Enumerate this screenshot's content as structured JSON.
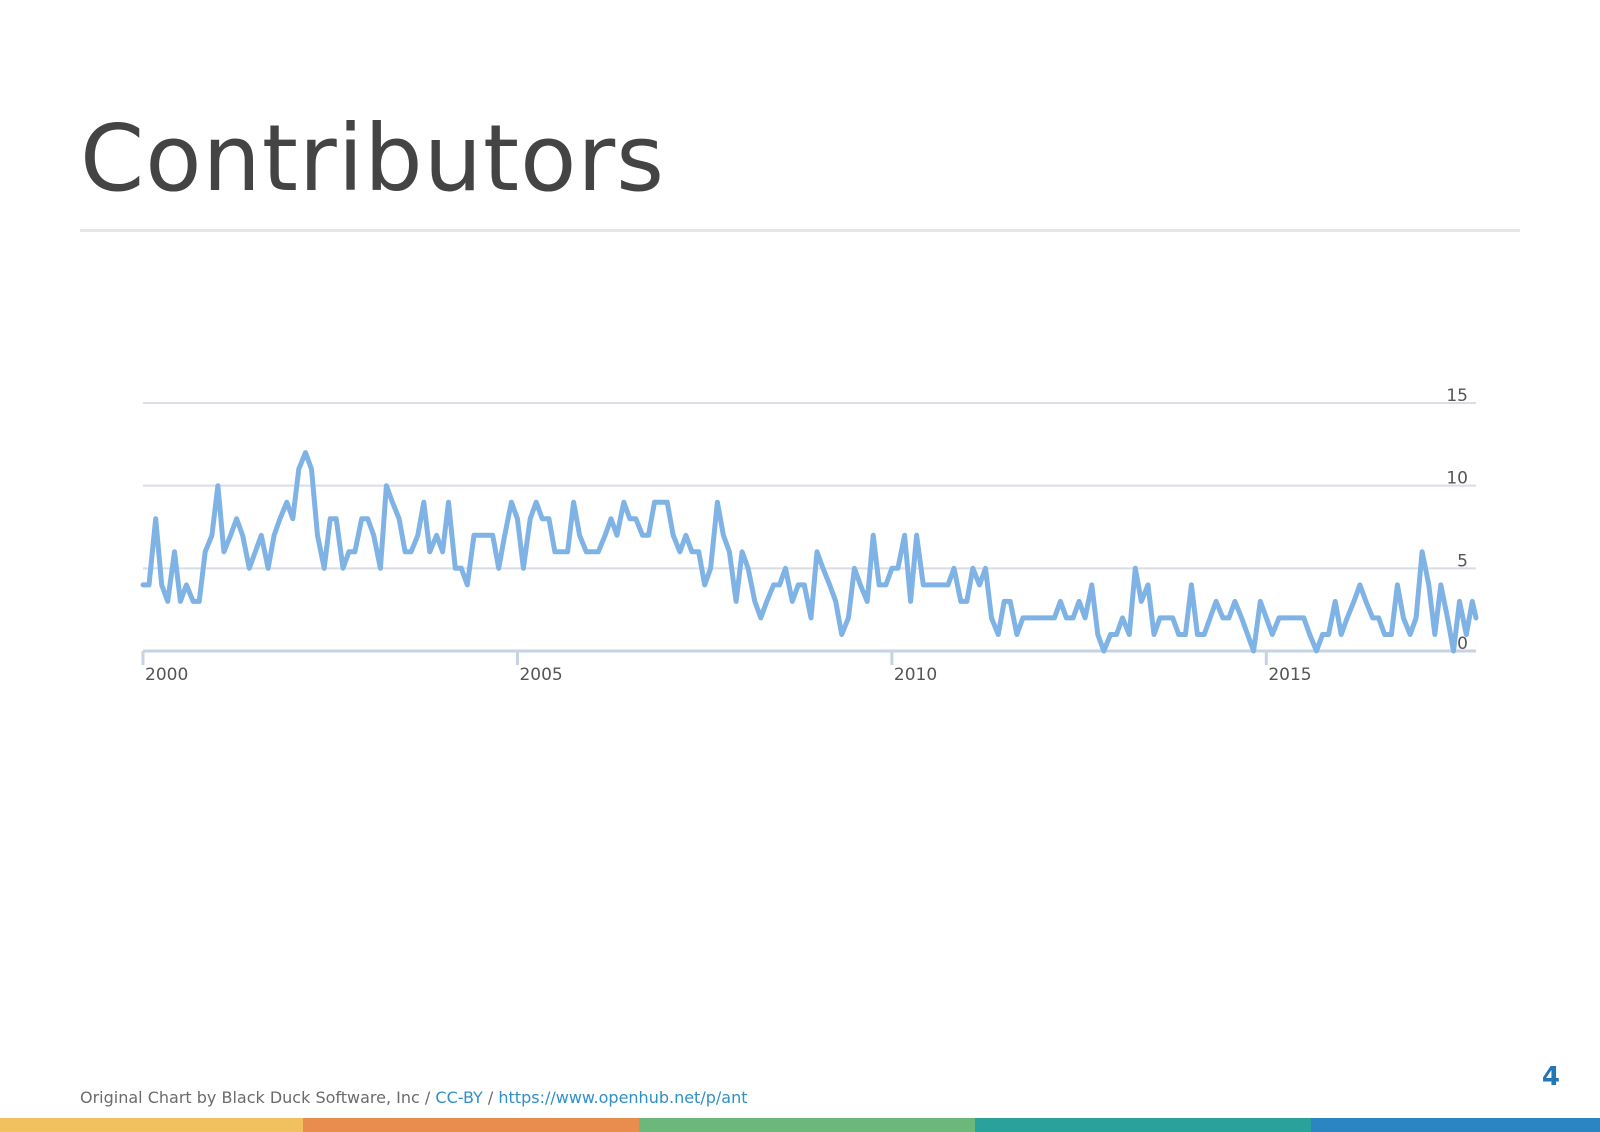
{
  "slide": {
    "title": "Contributors",
    "page_number": "4"
  },
  "footer": {
    "credit_text": "Original Chart by Black Duck Software, Inc",
    "separator": "/",
    "license_link": "CC-BY",
    "source_link": "https://www.openhub.net/p/ant"
  },
  "colors": {
    "line": "#7fb2e5",
    "gridline": "#d8dde6",
    "axis": "#c7d3e3",
    "title": "#444444",
    "accent_blue": "#2476b5",
    "stripe": [
      "#f2c15f",
      "#e98d4f",
      "#6bb87a",
      "#2aa19b",
      "#2a85c0"
    ]
  },
  "chart_data": {
    "type": "line",
    "title": "",
    "xlabel": "",
    "ylabel": "",
    "xlim": [
      2000.0,
      2017.8
    ],
    "ylim": [
      0,
      15
    ],
    "x_ticks": [
      2000,
      2005,
      2010,
      2015
    ],
    "x_tick_labels": [
      "2000",
      "2005",
      "2010",
      "2015"
    ],
    "y_ticks": [
      0,
      5,
      10,
      15
    ],
    "y_tick_labels": [
      "0",
      "5",
      "10",
      "15"
    ],
    "y_axis_side": "right",
    "grid": true,
    "legend": "none",
    "series": [
      {
        "x": [
          2000.0,
          2000.08,
          2000.17,
          2000.25,
          2000.33,
          2000.42,
          2000.5,
          2000.58,
          2000.67,
          2000.75,
          2000.83,
          2000.92,
          2001.0,
          2001.08,
          2001.17,
          2001.25,
          2001.33,
          2001.42,
          2001.5,
          2001.58,
          2001.67,
          2001.75,
          2001.83,
          2001.92,
          2002.0,
          2002.08,
          2002.17,
          2002.25,
          2002.33,
          2002.42,
          2002.5,
          2002.58,
          2002.67,
          2002.75,
          2002.83,
          2002.92,
          2003.0,
          2003.08,
          2003.17,
          2003.25,
          2003.33,
          2003.42,
          2003.5,
          2003.58,
          2003.67,
          2003.75,
          2003.83,
          2003.92,
          2004.0,
          2004.08,
          2004.17,
          2004.25,
          2004.33,
          2004.42,
          2004.5,
          2004.58,
          2004.67,
          2004.75,
          2004.83,
          2004.92,
          2005.0,
          2005.08,
          2005.17,
          2005.25,
          2005.33,
          2005.42,
          2005.5,
          2005.58,
          2005.67,
          2005.75,
          2005.83,
          2005.92,
          2006.0,
          2006.08,
          2006.17,
          2006.25,
          2006.33,
          2006.42,
          2006.5,
          2006.58,
          2006.67,
          2006.75,
          2006.83,
          2006.92,
          2007.0,
          2007.08,
          2007.17,
          2007.25,
          2007.33,
          2007.42,
          2007.5,
          2007.58,
          2007.67,
          2007.75,
          2007.83,
          2007.92,
          2008.0,
          2008.08,
          2008.17,
          2008.25,
          2008.33,
          2008.42,
          2008.5,
          2008.58,
          2008.67,
          2008.75,
          2008.83,
          2008.92,
          2009.0,
          2009.08,
          2009.17,
          2009.25,
          2009.33,
          2009.42,
          2009.5,
          2009.58,
          2009.67,
          2009.75,
          2009.83,
          2009.92,
          2010.0,
          2010.08,
          2010.17,
          2010.25,
          2010.33,
          2010.42,
          2010.5,
          2010.58,
          2010.67,
          2010.75,
          2010.83,
          2010.92,
          2011.0,
          2011.08,
          2011.17,
          2011.25,
          2011.33,
          2011.42,
          2011.5,
          2011.58,
          2011.67,
          2011.75,
          2011.83,
          2011.92,
          2012.0,
          2012.08,
          2012.17,
          2012.25,
          2012.33,
          2012.42,
          2012.5,
          2012.58,
          2012.67,
          2012.75,
          2012.83,
          2012.92,
          2013.0,
          2013.08,
          2013.17,
          2013.25,
          2013.33,
          2013.42,
          2013.5,
          2013.58,
          2013.67,
          2013.75,
          2013.83,
          2013.92,
          2014.0,
          2014.08,
          2014.17,
          2014.25,
          2014.33,
          2014.42,
          2014.5,
          2014.58,
          2014.67,
          2014.75,
          2014.83,
          2014.92,
          2015.0,
          2015.08,
          2015.17,
          2015.25,
          2015.33,
          2015.42,
          2015.5,
          2015.58,
          2015.67,
          2015.75,
          2015.83,
          2015.92,
          2016.0,
          2016.08,
          2016.17,
          2016.25,
          2016.33,
          2016.42,
          2016.5,
          2016.58,
          2016.67,
          2016.75,
          2016.83,
          2016.92,
          2017.0,
          2017.08,
          2017.17,
          2017.25,
          2017.33,
          2017.42,
          2017.5,
          2017.58,
          2017.67,
          2017.75,
          2017.8
        ],
        "y": [
          4,
          4,
          8,
          4,
          3,
          6,
          3,
          4,
          3,
          3,
          6,
          7,
          10,
          6,
          7,
          8,
          7,
          5,
          6,
          7,
          5,
          7,
          8,
          9,
          8,
          11,
          12,
          11,
          7,
          5,
          8,
          8,
          5,
          6,
          6,
          8,
          8,
          7,
          5,
          10,
          9,
          8,
          6,
          6,
          7,
          9,
          6,
          7,
          6,
          9,
          5,
          5,
          4,
          7,
          7,
          7,
          7,
          5,
          7,
          9,
          8,
          5,
          8,
          9,
          8,
          8,
          6,
          6,
          6,
          9,
          7,
          6,
          6,
          6,
          7,
          8,
          7,
          9,
          8,
          8,
          7,
          7,
          9,
          9,
          9,
          7,
          6,
          7,
          6,
          6,
          4,
          5,
          9,
          7,
          6,
          3,
          6,
          5,
          3,
          2,
          3,
          4,
          4,
          5,
          3,
          4,
          4,
          2,
          6,
          5,
          4,
          3,
          1,
          2,
          5,
          4,
          3,
          7,
          4,
          4,
          5,
          5,
          7,
          3,
          7,
          4,
          4,
          4,
          4,
          4,
          5,
          3,
          3,
          5,
          4,
          5,
          2,
          1,
          3,
          3,
          1,
          2,
          2,
          2,
          2,
          2,
          2,
          3,
          2,
          2,
          3,
          2,
          4,
          1,
          0,
          1,
          1,
          2,
          1,
          5,
          3,
          4,
          1,
          2,
          2,
          2,
          1,
          1,
          4,
          1,
          1,
          2,
          3,
          2,
          2,
          3,
          2,
          1,
          0,
          3,
          2,
          1,
          2,
          2,
          2,
          2,
          2,
          1,
          0,
          1,
          1,
          3,
          1,
          2,
          3,
          4,
          3,
          2,
          2,
          1,
          1,
          4,
          2,
          1,
          2,
          6,
          4,
          1,
          4,
          2,
          0,
          3,
          1,
          3,
          2
        ]
      }
    ]
  }
}
